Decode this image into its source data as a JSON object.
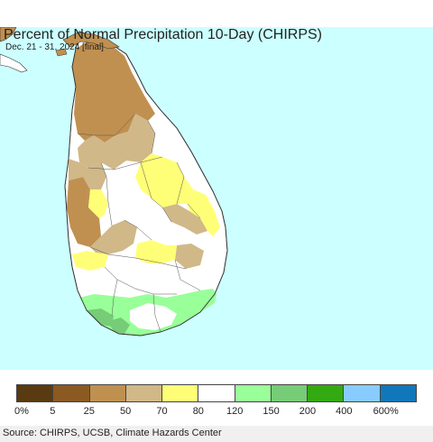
{
  "header": {
    "title": "Percent of Normal Precipitation 10-Day (CHIRPS)",
    "subtitle": "Dec. 21 - 31, 2024 [final]"
  },
  "map": {
    "ocean_color": "#ccffff",
    "land_regions": [
      {
        "class": "25-50",
        "color": "#c09050"
      },
      {
        "class": "50-70",
        "color": "#d0b888"
      },
      {
        "class": "70-80",
        "color": "#ffff77"
      },
      {
        "class": "80-120",
        "color": "#ffffff"
      },
      {
        "class": "120-150",
        "color": "#99ff99"
      },
      {
        "class": "150-200",
        "color": "#77cc77"
      }
    ]
  },
  "legend": {
    "colors": [
      "#5a3a10",
      "#8a5a22",
      "#c09050",
      "#d0b888",
      "#ffff77",
      "#ffffff",
      "#99ff99",
      "#77cc77",
      "#33aa11",
      "#88ccff",
      "#1177bb"
    ],
    "labels": [
      "0%",
      "5",
      "25",
      "50",
      "70",
      "80",
      "120",
      "150",
      "200",
      "400",
      "600%"
    ]
  },
  "footer": {
    "source": "Source: CHIRPS, UCSB, Climate Hazards Center"
  }
}
